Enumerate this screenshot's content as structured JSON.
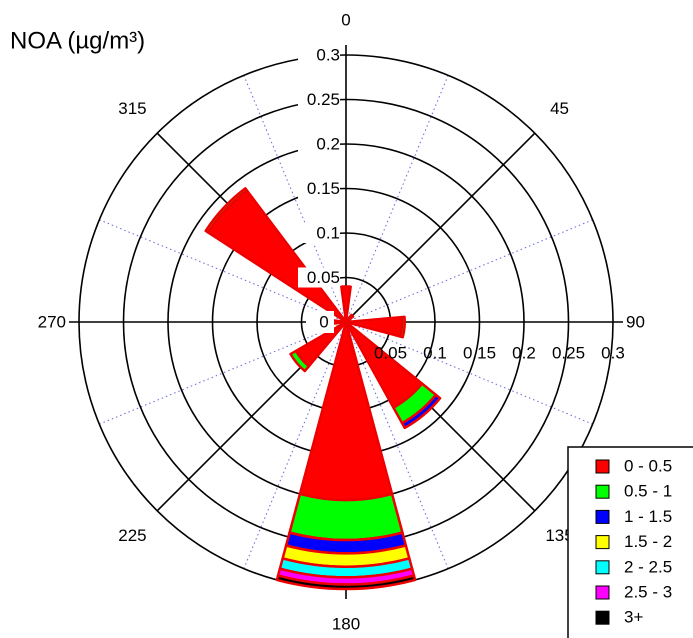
{
  "chart_data": {
    "type": "windrose",
    "title": "NOA (µg/m³)",
    "x": [
      0,
      45,
      95,
      140,
      180,
      230,
      270,
      313
    ],
    "widths": [
      15,
      15,
      20,
      22,
      30,
      20,
      15,
      20
    ],
    "series": [
      {
        "name": "0 - 0.5",
        "color": "#ff0000",
        "values": [
          0.04,
          0.01,
          0.063,
          0.11,
          0.2,
          0.065,
          0.015,
          0.185
        ]
      },
      {
        "name": "0.5 - 1",
        "color": "#00ff00",
        "values": [
          0,
          0,
          0.003,
          0.02,
          0.045,
          0.007,
          0,
          0.003
        ]
      },
      {
        "name": "1 - 1.5",
        "color": "#0000ff",
        "values": [
          0,
          0,
          0,
          0.006,
          0.015,
          0,
          0,
          0
        ]
      },
      {
        "name": "1.5 - 2",
        "color": "#ffff00",
        "values": [
          0,
          0,
          0,
          0,
          0.015,
          0,
          0,
          0
        ]
      },
      {
        "name": "2 - 2.5",
        "color": "#00ffff",
        "values": [
          0,
          0,
          0,
          0,
          0.012,
          0,
          0,
          0
        ]
      },
      {
        "name": "2.5 - 3",
        "color": "#ff00ff",
        "values": [
          0,
          0,
          0,
          0,
          0.008,
          0,
          0,
          0
        ]
      },
      {
        "name": "3+",
        "color": "#000000",
        "values": [
          0,
          0,
          0,
          0,
          0.005,
          0,
          0,
          0
        ]
      }
    ],
    "rlim": [
      0,
      0.3
    ],
    "rticks": [
      0,
      0.05,
      0.1,
      0.15,
      0.2,
      0.25,
      0.3
    ],
    "angle_ticks": [
      0,
      45,
      90,
      135,
      180,
      225,
      270,
      315
    ],
    "grid": true,
    "legend": "bottom-right"
  }
}
